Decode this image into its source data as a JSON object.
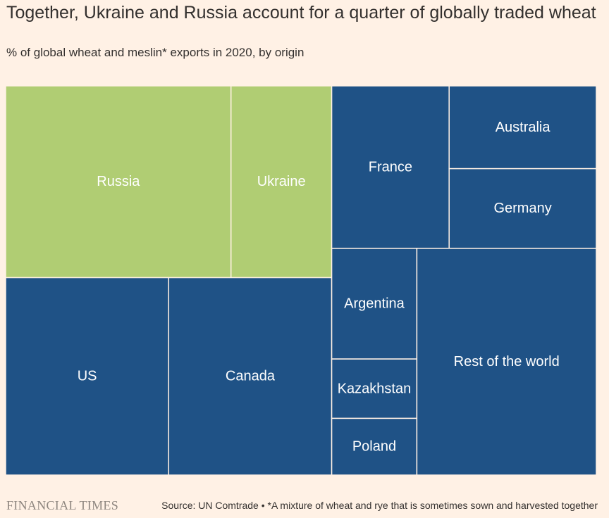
{
  "title": "Together, Ukraine and Russia account for a quarter of globally traded wheat",
  "subtitle": "% of global wheat and meslin* exports in 2020, by origin",
  "chart_data": {
    "type": "treemap",
    "title": "Together, Ukraine and Russia account for a quarter of globally traded wheat",
    "subtitle": "% of global wheat and meslin* exports in 2020, by origin",
    "unit": "% of global exports (values estimated from tile areas)",
    "highlight_color": "#b0cd73",
    "base_color": "#1f5286",
    "tiles": [
      {
        "name": "Russia",
        "value": 18.8,
        "highlight": true
      },
      {
        "name": "Ukraine",
        "value": 8.4,
        "highlight": true
      },
      {
        "name": "US",
        "value": 14.0,
        "highlight": false
      },
      {
        "name": "Canada",
        "value": 14.0,
        "highlight": false
      },
      {
        "name": "France",
        "value": 8.3,
        "highlight": false
      },
      {
        "name": "Australia",
        "value": 5.3,
        "highlight": false
      },
      {
        "name": "Germany",
        "value": 5.1,
        "highlight": false
      },
      {
        "name": "Argentina",
        "value": 4.1,
        "highlight": false
      },
      {
        "name": "Kazakhstan",
        "value": 2.2,
        "highlight": false
      },
      {
        "name": "Poland",
        "value": 2.1,
        "highlight": false
      },
      {
        "name": "Rest of the world",
        "value": 17.7,
        "highlight": false
      }
    ]
  },
  "footer": {
    "brand": "FINANCIAL TIMES",
    "source": "Source: UN Comtrade • *A mixture of wheat and rye that is sometimes sown and harvested together"
  }
}
